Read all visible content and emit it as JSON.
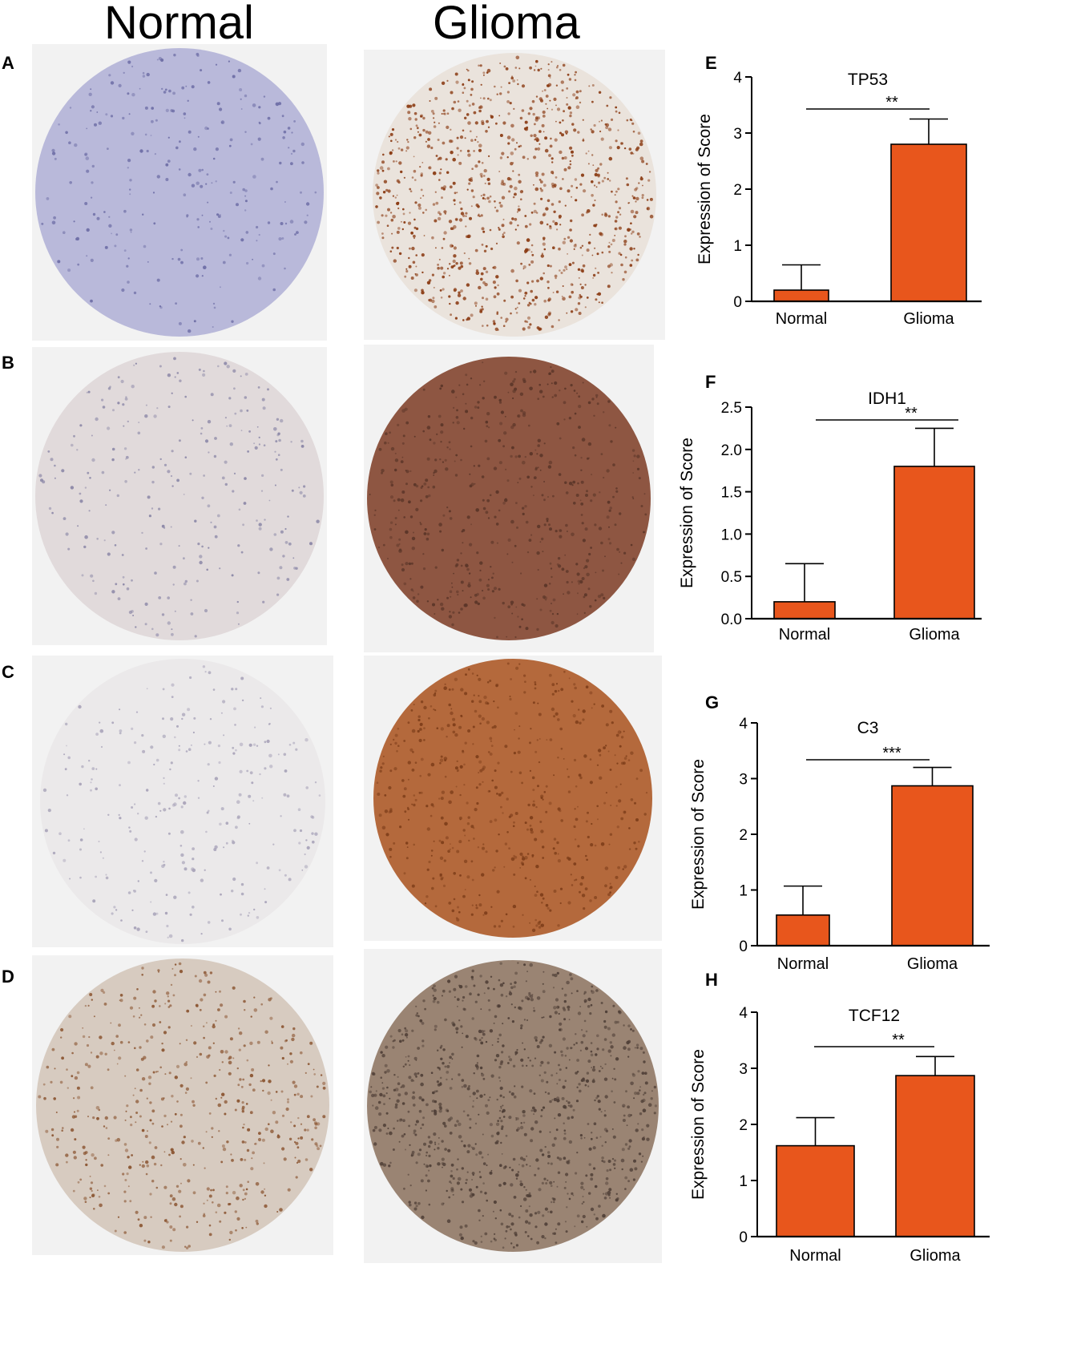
{
  "column_headers": {
    "normal": "Normal",
    "glioma": "Glioma"
  },
  "panel_letters": {
    "A": "A",
    "B": "B",
    "C": "C",
    "D": "D",
    "E": "E",
    "F": "F",
    "G": "G",
    "H": "H"
  },
  "colors": {
    "bar": "#e8561c",
    "axis": "#000000",
    "background": "#ffffff"
  },
  "micrographs": [
    {
      "panel": "A",
      "normal": {
        "stain": "#b9b9da",
        "dots": "#6e6ea6",
        "density": "low"
      },
      "glioma": {
        "stain": "#eae3dc",
        "dots": "#8a3a12",
        "density": "high"
      }
    },
    {
      "panel": "B",
      "normal": {
        "stain": "#e1dadb",
        "dots": "#8a86a6",
        "density": "low"
      },
      "glioma": {
        "stain": "#8e5642",
        "dots": "#5a3528",
        "density": "medium"
      }
    },
    {
      "panel": "C",
      "normal": {
        "stain": "#ebe9ea",
        "dots": "#a7a2b8",
        "density": "low"
      },
      "glioma": {
        "stain": "#b4693c",
        "dots": "#7e3e1a",
        "density": "medium"
      }
    },
    {
      "panel": "D",
      "normal": {
        "stain": "#d7cbc0",
        "dots": "#8a5430",
        "density": "medium"
      },
      "glioma": {
        "stain": "#9a8473",
        "dots": "#4e3e36",
        "density": "high"
      }
    }
  ],
  "chart_data": [
    {
      "panel": "E",
      "type": "bar",
      "title": "TP53",
      "ylabel": "Expression of Score",
      "categories": [
        "Normal",
        "Glioma"
      ],
      "values": [
        0.2,
        2.8
      ],
      "errors": [
        0.45,
        0.45
      ],
      "ylim": [
        0,
        4
      ],
      "yticks": [
        "0",
        "1",
        "2",
        "3",
        "4"
      ],
      "significance": "**",
      "grid": false
    },
    {
      "panel": "F",
      "type": "bar",
      "title": "IDH1",
      "ylabel": "Expression of Score",
      "categories": [
        "Normal",
        "Glioma"
      ],
      "values": [
        0.2,
        1.8
      ],
      "errors": [
        0.45,
        0.45
      ],
      "ylim": [
        0,
        2.5
      ],
      "yticks": [
        "0.0",
        "0.5",
        "1.0",
        "1.5",
        "2.0",
        "2.5"
      ],
      "significance": "**",
      "grid": false
    },
    {
      "panel": "G",
      "type": "bar",
      "title": "C3",
      "ylabel": "Expression of Score",
      "categories": [
        "Normal",
        "Glioma"
      ],
      "values": [
        0.55,
        2.87
      ],
      "errors": [
        0.52,
        0.33
      ],
      "ylim": [
        0,
        4
      ],
      "yticks": [
        "0",
        "1",
        "2",
        "3",
        "4"
      ],
      "significance": "***",
      "grid": false
    },
    {
      "panel": "H",
      "type": "bar",
      "title": "TCF12",
      "ylabel": "Expression of Score",
      "categories": [
        "Normal",
        "Glioma"
      ],
      "values": [
        1.62,
        2.87
      ],
      "errors": [
        0.5,
        0.34
      ],
      "ylim": [
        0,
        4
      ],
      "yticks": [
        "0",
        "1",
        "2",
        "3",
        "4"
      ],
      "significance": "**",
      "grid": false
    }
  ]
}
